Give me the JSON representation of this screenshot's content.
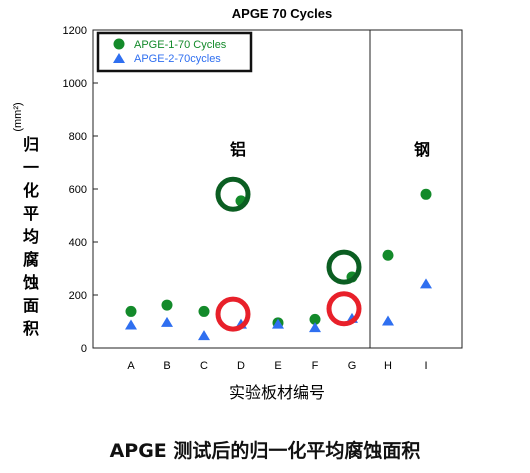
{
  "chart_data": {
    "type": "scatter",
    "title": "APGE 70 Cycles",
    "xlabel": "实验板材编号",
    "ylabel": "归一化平均腐蚀面积",
    "ylabel_unit": "(mm²)",
    "categories": [
      "A",
      "B",
      "C",
      "D",
      "E",
      "F",
      "G",
      "H",
      "I"
    ],
    "ylim": [
      0,
      1200
    ],
    "yticks": [
      0,
      200,
      400,
      600,
      800,
      1000,
      1200
    ],
    "grid": false,
    "legend_position": "top-left",
    "series": [
      {
        "name": "APGE-1-70 Cycles",
        "marker": "circle",
        "color": "#138a2a",
        "values": [
          138,
          162,
          138,
          555,
          95,
          108,
          268,
          350,
          580
        ]
      },
      {
        "name": "APGE-2-70cycles",
        "marker": "triangle",
        "color": "#2f6ff0",
        "values": [
          85,
          95,
          45,
          88,
          88,
          75,
          110,
          100,
          240
        ]
      }
    ],
    "region_labels": [
      {
        "text": "铝",
        "after_category": "C"
      },
      {
        "text": "钢",
        "after_category": "H"
      }
    ],
    "divider_between": [
      "G",
      "H"
    ],
    "highlight_circles": [
      {
        "category": "D",
        "value": 580,
        "color": "#0b5e22"
      },
      {
        "category": "D",
        "value": 128,
        "color": "#e8202a"
      },
      {
        "category": "G",
        "value": 305,
        "color": "#0b5e22"
      },
      {
        "category": "G",
        "value": 148,
        "color": "#e8202a"
      }
    ]
  },
  "caption": "APGE 测试后的归一化平均腐蚀面积"
}
